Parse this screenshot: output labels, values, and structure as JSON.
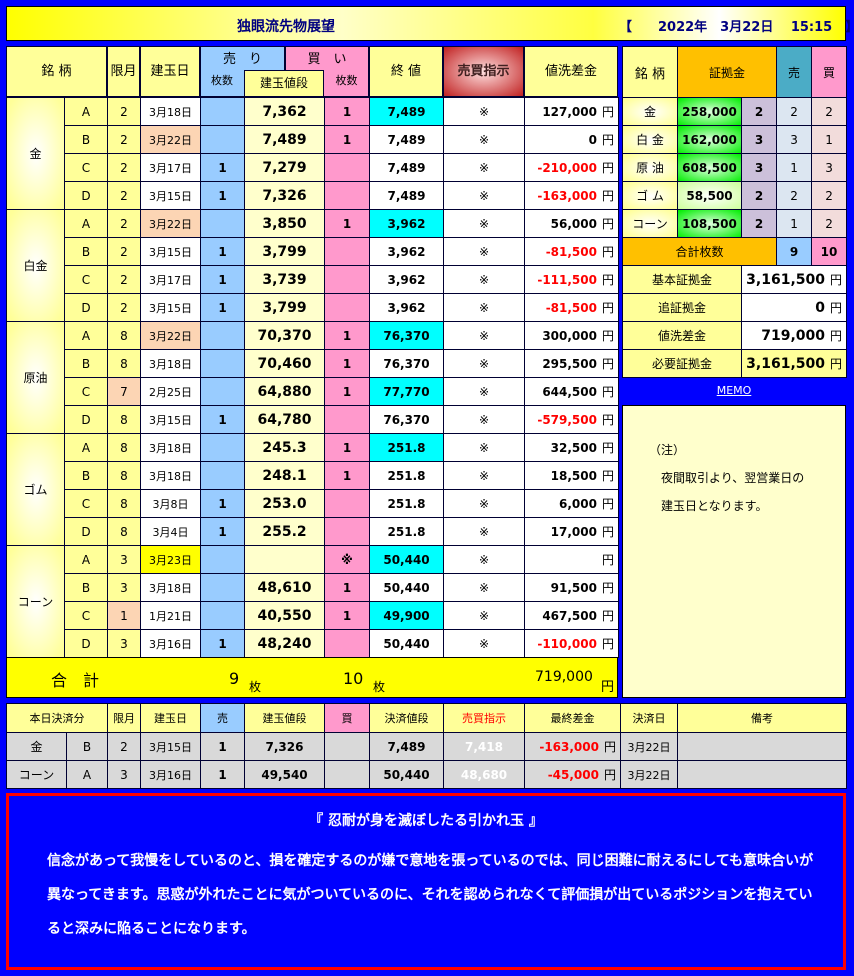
{
  "title": "独眼流先物展望",
  "datetime": "【　　2022年　3月22日　 15:15　】",
  "main": {
    "headers": {
      "name": "銘 柄",
      "month": "限月",
      "date": "建玉日",
      "sell": "売　り",
      "sell_count": "枚数",
      "buy": "買　い",
      "buy_count": "枚数",
      "price": "建玉値段",
      "close": "終 値",
      "instruction": "売買指示",
      "diff": "値洗差金"
    },
    "yen": "円",
    "groups": [
      {
        "name": "金",
        "rows": [
          {
            "letter": "A",
            "month": "2",
            "date": "3月18日",
            "sell": "",
            "price": "7,362",
            "buy": "1",
            "close": "7,489",
            "close_hl": "cyan",
            "instr": "※",
            "diff": "127,000"
          },
          {
            "letter": "B",
            "month": "2",
            "date": "3月22日",
            "date_hl": "peach",
            "sell": "",
            "price": "7,489",
            "buy": "1",
            "close": "7,489",
            "instr": "※",
            "diff": "0"
          },
          {
            "letter": "C",
            "month": "2",
            "date": "3月17日",
            "sell": "1",
            "price": "7,279",
            "buy": "",
            "close": "7,489",
            "instr": "※",
            "diff": "-210,000"
          },
          {
            "letter": "D",
            "month": "2",
            "date": "3月15日",
            "sell": "1",
            "price": "7,326",
            "buy": "",
            "close": "7,489",
            "instr": "※",
            "diff": "-163,000"
          }
        ]
      },
      {
        "name": "白金",
        "rows": [
          {
            "letter": "A",
            "month": "2",
            "date": "3月22日",
            "date_hl": "peach",
            "sell": "",
            "price": "3,850",
            "buy": "1",
            "close": "3,962",
            "close_hl": "cyan",
            "instr": "※",
            "diff": "56,000"
          },
          {
            "letter": "B",
            "month": "2",
            "date": "3月15日",
            "sell": "1",
            "price": "3,799",
            "buy": "",
            "close": "3,962",
            "instr": "※",
            "diff": "-81,500"
          },
          {
            "letter": "C",
            "month": "2",
            "date": "3月17日",
            "sell": "1",
            "price": "3,739",
            "buy": "",
            "close": "3,962",
            "instr": "※",
            "diff": "-111,500"
          },
          {
            "letter": "D",
            "month": "2",
            "date": "3月15日",
            "sell": "1",
            "price": "3,799",
            "buy": "",
            "close": "3,962",
            "instr": "※",
            "diff": "-81,500"
          }
        ]
      },
      {
        "name": "原油",
        "rows": [
          {
            "letter": "A",
            "month": "8",
            "date": "3月22日",
            "date_hl": "peach",
            "sell": "",
            "price": "70,370",
            "buy": "1",
            "close": "76,370",
            "close_hl": "cyan",
            "instr": "※",
            "diff": "300,000"
          },
          {
            "letter": "B",
            "month": "8",
            "date": "3月18日",
            "sell": "",
            "price": "70,460",
            "buy": "1",
            "close": "76,370",
            "instr": "※",
            "diff": "295,500"
          },
          {
            "letter": "C",
            "month": "7",
            "month_hl": "peach",
            "date": "2月25日",
            "sell": "",
            "price": "64,880",
            "buy": "1",
            "close": "77,770",
            "close_hl": "cyan",
            "instr": "※",
            "diff": "644,500"
          },
          {
            "letter": "D",
            "month": "8",
            "date": "3月15日",
            "sell": "1",
            "price": "64,780",
            "buy": "",
            "close": "76,370",
            "instr": "※",
            "diff": "-579,500"
          }
        ]
      },
      {
        "name": "ゴム",
        "rows": [
          {
            "letter": "A",
            "month": "8",
            "date": "3月18日",
            "sell": "",
            "price": "245.3",
            "buy": "1",
            "close": "251.8",
            "close_hl": "cyan",
            "instr": "※",
            "diff": "32,500"
          },
          {
            "letter": "B",
            "month": "8",
            "date": "3月18日",
            "sell": "",
            "price": "248.1",
            "buy": "1",
            "close": "251.8",
            "instr": "※",
            "diff": "18,500"
          },
          {
            "letter": "C",
            "month": "8",
            "date": "3月8日",
            "sell": "1",
            "price": "253.0",
            "buy": "",
            "close": "251.8",
            "instr": "※",
            "diff": "6,000"
          },
          {
            "letter": "D",
            "month": "8",
            "date": "3月4日",
            "sell": "1",
            "price": "255.2",
            "buy": "",
            "close": "251.8",
            "instr": "※",
            "diff": "17,000"
          }
        ]
      },
      {
        "name": "コーン",
        "rows": [
          {
            "letter": "A",
            "month": "3",
            "date": "3月23日",
            "date_hl": "yel",
            "sell": "",
            "price": "",
            "buy": "※",
            "close": "50,440",
            "close_hl": "cyan",
            "instr": "※",
            "diff": ""
          },
          {
            "letter": "B",
            "month": "3",
            "date": "3月18日",
            "sell": "",
            "price": "48,610",
            "buy": "1",
            "close": "50,440",
            "instr": "※",
            "diff": "91,500"
          },
          {
            "letter": "C",
            "month": "1",
            "month_hl": "peach",
            "date": "1月21日",
            "sell": "",
            "price": "40,550",
            "buy": "1",
            "close": "49,900",
            "close_hl": "cyan",
            "instr": "※",
            "diff": "467,500"
          },
          {
            "letter": "D",
            "month": "3",
            "date": "3月16日",
            "sell": "1",
            "price": "48,240",
            "buy": "",
            "close": "50,440",
            "instr": "※",
            "diff": "-110,000"
          }
        ]
      }
    ],
    "total": {
      "label": "合　計",
      "sell": "9",
      "buy": "10",
      "unit": "枚",
      "diff": "719,000"
    }
  },
  "margin": {
    "headers": {
      "name": "銘 柄",
      "margin": "証拠金",
      "sell": "売",
      "buy": "買"
    },
    "rows": [
      {
        "name": "金",
        "margin": "258,000",
        "count": "2",
        "sell": "2",
        "buy": "2"
      },
      {
        "name": "白 金",
        "margin": "162,000",
        "count": "3",
        "sell": "3",
        "buy": "1"
      },
      {
        "name": "原 油",
        "margin": "608,500",
        "count": "3",
        "sell": "1",
        "buy": "3"
      },
      {
        "name": "ゴ ム",
        "margin": "58,500",
        "count": "2",
        "sell": "2",
        "buy": "2",
        "pale": true
      },
      {
        "name": "コーン",
        "margin": "108,500",
        "count": "2",
        "sell": "1",
        "buy": "2"
      }
    ],
    "total_label": "合計枚数",
    "total_sell": "9",
    "total_buy": "10",
    "summary": [
      {
        "label": "基本証拠金",
        "value": "3,161,500"
      },
      {
        "label": "追証拠金",
        "value": "0"
      },
      {
        "label": "値洗差金",
        "value": "719,000"
      },
      {
        "label": "必要証拠金",
        "value": "3,161,500"
      }
    ]
  },
  "memo": {
    "link": "MEMO",
    "lines": [
      "（注）",
      "　夜間取引より、翌営業日の",
      "　建玉日となります。"
    ]
  },
  "settled": {
    "headers": [
      "本日決済分",
      "限月",
      "建玉日",
      "売",
      "建玉値段",
      "買",
      "決済値段",
      "売買指示",
      "最終差金",
      "決済日",
      "備考"
    ],
    "rows": [
      {
        "name": "金",
        "letter": "B",
        "month": "2",
        "date": "3月15日",
        "sell": "1",
        "price": "7,326",
        "buy": "",
        "settle": "7,489",
        "instr": "7,418",
        "diff": "-163,000",
        "sdate": "3月22日",
        "note": ""
      },
      {
        "name": "コーン",
        "letter": "A",
        "month": "3",
        "date": "3月16日",
        "sell": "1",
        "price": "49,540",
        "buy": "",
        "settle": "50,440",
        "instr": "48,680",
        "diff": "-45,000",
        "sdate": "3月22日",
        "note": ""
      }
    ]
  },
  "message": {
    "heading": "『 忍耐が身を滅ぼしたる引かれ玉 』",
    "body": "信念があって我慢をしているのと、損を確定するのが嫌で意地を張っているのでは、同じ困難に耐えるにしても意味合いが異なってきます。思惑が外れたことに気がついているのに、それを認められなくて評価損が出ているポジションを抱えていると深みに陥ることになります。"
  }
}
